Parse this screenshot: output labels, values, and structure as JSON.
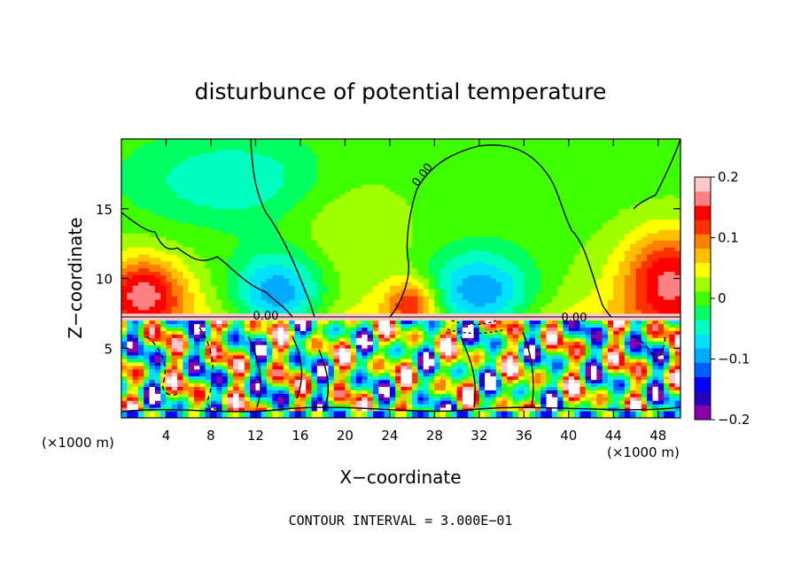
{
  "chart_data": {
    "type": "heatmap",
    "title": "disturbunce of potential temperature",
    "xlabel": "X−coordinate",
    "ylabel": "Z−coordinate",
    "x_unit_left": "(×1000 m)",
    "x_unit_right": "(×1000 m)",
    "xlim": [
      0,
      50
    ],
    "ylim": [
      0,
      20
    ],
    "x_ticks": [
      4,
      8,
      12,
      16,
      20,
      24,
      28,
      32,
      36,
      40,
      44,
      48
    ],
    "y_ticks": [
      5,
      10,
      15
    ],
    "colorbar": {
      "min": -0.2,
      "max": 0.2,
      "tick_values": [
        0.2,
        0.1,
        0,
        -0.1,
        -0.2
      ],
      "tick_labels": [
        "0.2",
        "0.1",
        "0",
        "−0.1",
        "−0.2"
      ],
      "colors": [
        "#8b00a8",
        "#2a00c0",
        "#0000ff",
        "#0060ff",
        "#00aaff",
        "#00e0ff",
        "#00ffc0",
        "#00ff60",
        "#40ff00",
        "#a0ff00",
        "#ffff00",
        "#ffc000",
        "#ff8000",
        "#ff3000",
        "#ff0000",
        "#ff8080",
        "#ffc8c8"
      ]
    },
    "contour_interval_text": "CONTOUR INTERVAL = 3.000E−01",
    "contour_labels": [
      "0.00",
      "0.00",
      "0.00"
    ]
  },
  "colors": {
    "background": "#ffffff",
    "frame": "#000000"
  }
}
